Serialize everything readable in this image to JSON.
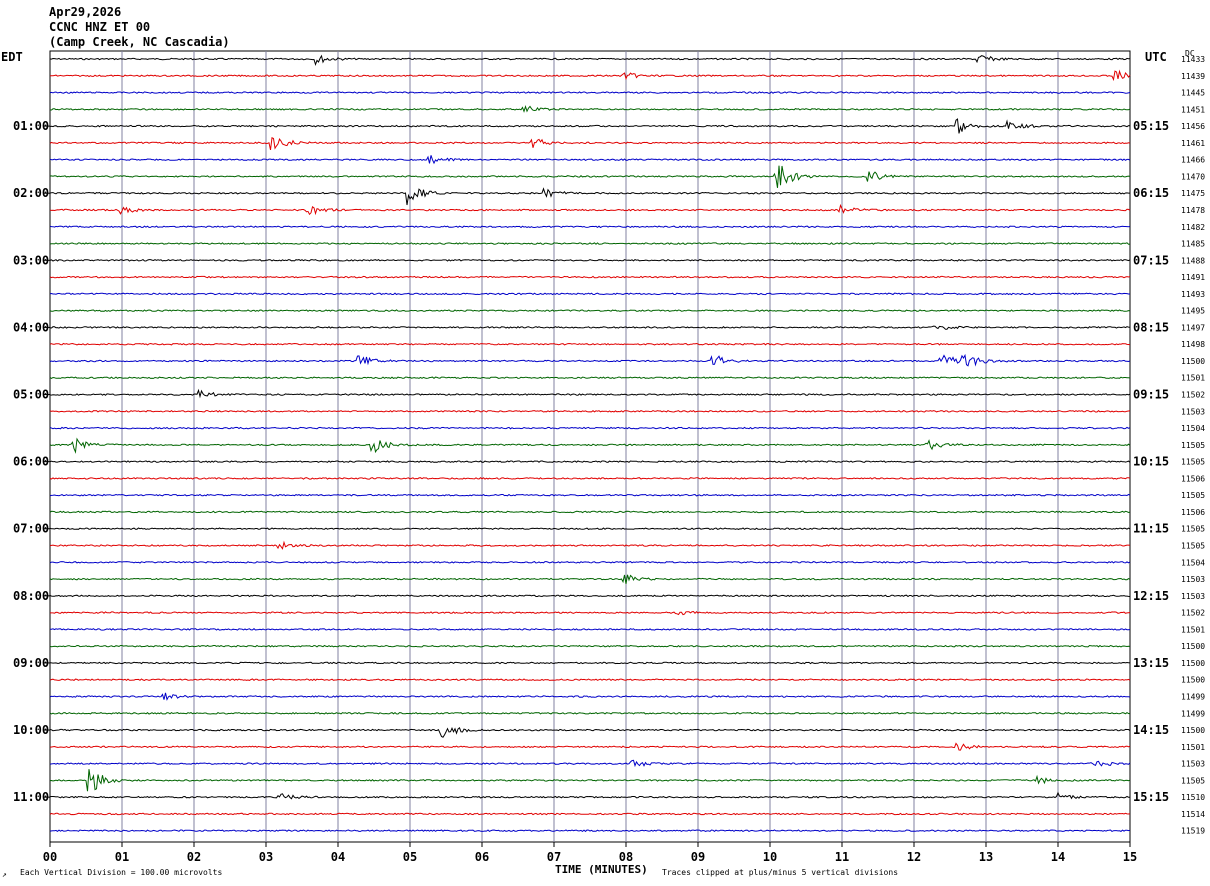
{
  "header": {
    "date": "Apr29,2026",
    "station": "CCNC HNZ ET 00",
    "location": "(Camp Creek, NC Cascadia)"
  },
  "left_tz": "EDT",
  "right_tz": "UTC",
  "dc_label": "DC",
  "footer": {
    "scale_note": "Each Vertical Division =  100.00 microvolts",
    "xlabel": "TIME (MINUTES)",
    "clip_note": "Traces clipped at plus/minus 5 vertical divisions",
    "logo": "↗"
  },
  "chart_data": {
    "type": "line",
    "title": "CCNC HNZ ET 00",
    "xlabel": "TIME (MINUTES)",
    "x_ticks": [
      "00",
      "01",
      "02",
      "03",
      "04",
      "05",
      "06",
      "07",
      "08",
      "09",
      "10",
      "11",
      "12",
      "13",
      "14",
      "15"
    ],
    "xlim": [
      0,
      15
    ],
    "grid": true,
    "trace_colors": [
      "#000000",
      "#e00000",
      "#0000c8",
      "#006400"
    ],
    "left_labels": [
      "01:00",
      "02:00",
      "03:00",
      "04:00",
      "05:00",
      "06:00",
      "07:00",
      "08:00",
      "09:00",
      "10:00",
      "11:00"
    ],
    "right_labels": [
      "05:15",
      "06:15",
      "07:15",
      "08:15",
      "09:15",
      "10:15",
      "11:15",
      "12:15",
      "13:15",
      "14:15",
      "15:15"
    ],
    "dc_values": [
      "11433",
      "11439",
      "11445",
      "11451",
      "11456",
      "11461",
      "11466",
      "11470",
      "11475",
      "11478",
      "11482",
      "11485",
      "11488",
      "11491",
      "11493",
      "11495",
      "11497",
      "11498",
      "11500",
      "11501",
      "11502",
      "11503",
      "11504",
      "11505",
      "11505",
      "11506",
      "11505",
      "11506",
      "11505",
      "11505",
      "11504",
      "11503",
      "11503",
      "11502",
      "11501",
      "11500",
      "11500",
      "11500",
      "11499",
      "11499",
      "11500",
      "11501",
      "11503",
      "11505",
      "11510",
      "11514",
      "11519"
    ],
    "events": [
      {
        "trace": 0,
        "minute": 3.7,
        "amp": 1.2
      },
      {
        "trace": 0,
        "minute": 12.9,
        "amp": 1.2
      },
      {
        "trace": 1,
        "minute": 8.0,
        "amp": 0.8
      },
      {
        "trace": 1,
        "minute": 14.8,
        "amp": 1.5
      },
      {
        "trace": 3,
        "minute": 6.6,
        "amp": 1.0
      },
      {
        "trace": 4,
        "minute": 12.6,
        "amp": 2.0
      },
      {
        "trace": 4,
        "minute": 13.3,
        "amp": 2.0
      },
      {
        "trace": 5,
        "minute": 3.1,
        "amp": 3.0
      },
      {
        "trace": 5,
        "minute": 6.7,
        "amp": 1.5
      },
      {
        "trace": 6,
        "minute": 5.3,
        "amp": 1.0
      },
      {
        "trace": 7,
        "minute": 10.1,
        "amp": 5.0
      },
      {
        "trace": 7,
        "minute": 11.4,
        "amp": 1.5
      },
      {
        "trace": 8,
        "minute": 5.0,
        "amp": 3.0
      },
      {
        "trace": 8,
        "minute": 6.9,
        "amp": 1.0
      },
      {
        "trace": 9,
        "minute": 1.0,
        "amp": 1.0
      },
      {
        "trace": 9,
        "minute": 3.6,
        "amp": 1.5
      },
      {
        "trace": 9,
        "minute": 11.0,
        "amp": 1.0
      },
      {
        "trace": 16,
        "minute": 12.3,
        "amp": 1.0
      },
      {
        "trace": 18,
        "minute": 4.3,
        "amp": 2.0
      },
      {
        "trace": 18,
        "minute": 9.2,
        "amp": 2.0
      },
      {
        "trace": 18,
        "minute": 12.4,
        "amp": 2.0
      },
      {
        "trace": 18,
        "minute": 12.7,
        "amp": 3.0
      },
      {
        "trace": 20,
        "minute": 2.1,
        "amp": 1.0
      },
      {
        "trace": 23,
        "minute": 0.35,
        "amp": 2.0
      },
      {
        "trace": 23,
        "minute": 4.5,
        "amp": 2.0
      },
      {
        "trace": 23,
        "minute": 12.2,
        "amp": 1.5
      },
      {
        "trace": 29,
        "minute": 3.2,
        "amp": 1.0
      },
      {
        "trace": 31,
        "minute": 8.0,
        "amp": 1.2
      },
      {
        "trace": 33,
        "minute": 8.7,
        "amp": 0.8
      },
      {
        "trace": 38,
        "minute": 1.6,
        "amp": 0.8
      },
      {
        "trace": 40,
        "minute": 5.45,
        "amp": 2.5
      },
      {
        "trace": 41,
        "minute": 12.6,
        "amp": 1.0
      },
      {
        "trace": 42,
        "minute": 8.1,
        "amp": 1.0
      },
      {
        "trace": 42,
        "minute": 14.5,
        "amp": 1.2
      },
      {
        "trace": 43,
        "minute": 0.55,
        "amp": 4.0
      },
      {
        "trace": 43,
        "minute": 13.7,
        "amp": 1.0
      },
      {
        "trace": 44,
        "minute": 3.2,
        "amp": 1.0
      },
      {
        "trace": 44,
        "minute": 14.0,
        "amp": 1.0
      }
    ]
  }
}
